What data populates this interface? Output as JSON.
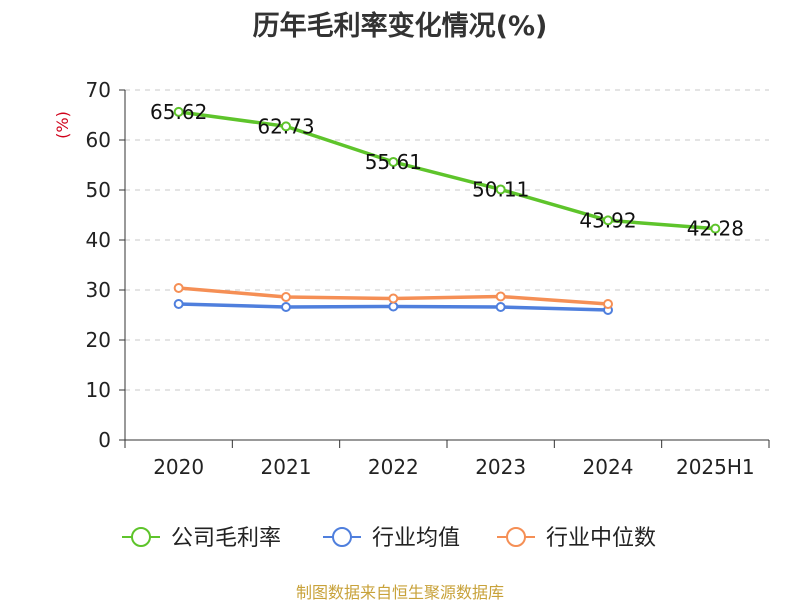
{
  "title": "历年毛利率变化情况(%)",
  "source": "制图数据来自恒生聚源数据库",
  "chart_data": {
    "type": "line",
    "title": "历年毛利率变化情况(%)",
    "ylabel": "(%)",
    "xlabel": "",
    "categories": [
      "2020",
      "2021",
      "2022",
      "2023",
      "2024",
      "2025H1"
    ],
    "ylim": [
      0,
      70
    ],
    "yticks": [
      0,
      10,
      20,
      30,
      40,
      50,
      60,
      70
    ],
    "grid": true,
    "legend_position": "bottom",
    "series": [
      {
        "name": "公司毛利率",
        "color": "#5ec42b",
        "labels": true,
        "values": [
          65.62,
          62.73,
          55.61,
          50.11,
          43.92,
          42.28
        ]
      },
      {
        "name": "行业均值",
        "color": "#4f7fdd",
        "labels": false,
        "values": [
          27.2,
          26.6,
          26.7,
          26.6,
          26.0,
          null
        ]
      },
      {
        "name": "行业中位数",
        "color": "#f58f55",
        "labels": false,
        "values": [
          30.4,
          28.6,
          28.3,
          28.7,
          27.2,
          null
        ]
      }
    ]
  }
}
